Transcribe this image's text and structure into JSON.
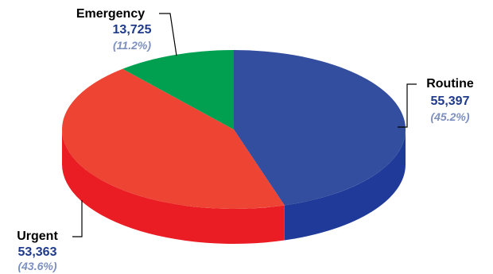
{
  "chart_data": {
    "type": "pie",
    "title": "",
    "style": "3d",
    "legend": "none",
    "value_color": "#1f3a8a",
    "percent_color": "#7c8fbe",
    "slices": [
      {
        "label": "Routine",
        "value": 55397,
        "value_text": "55,397",
        "percent_text": "(45.2%)",
        "top_color": "#334e9e",
        "side_color": "#1f3a99"
      },
      {
        "label": "Urgent",
        "value": 53363,
        "value_text": "53,363",
        "percent_text": "(43.6%)",
        "top_color": "#ee4433",
        "side_color": "#ea1c24"
      },
      {
        "label": "Emergency",
        "value": 13725,
        "value_text": "13,725",
        "percent_text": "(11.2%)",
        "top_color": "#00a050",
        "side_color": "#008a44"
      }
    ]
  }
}
